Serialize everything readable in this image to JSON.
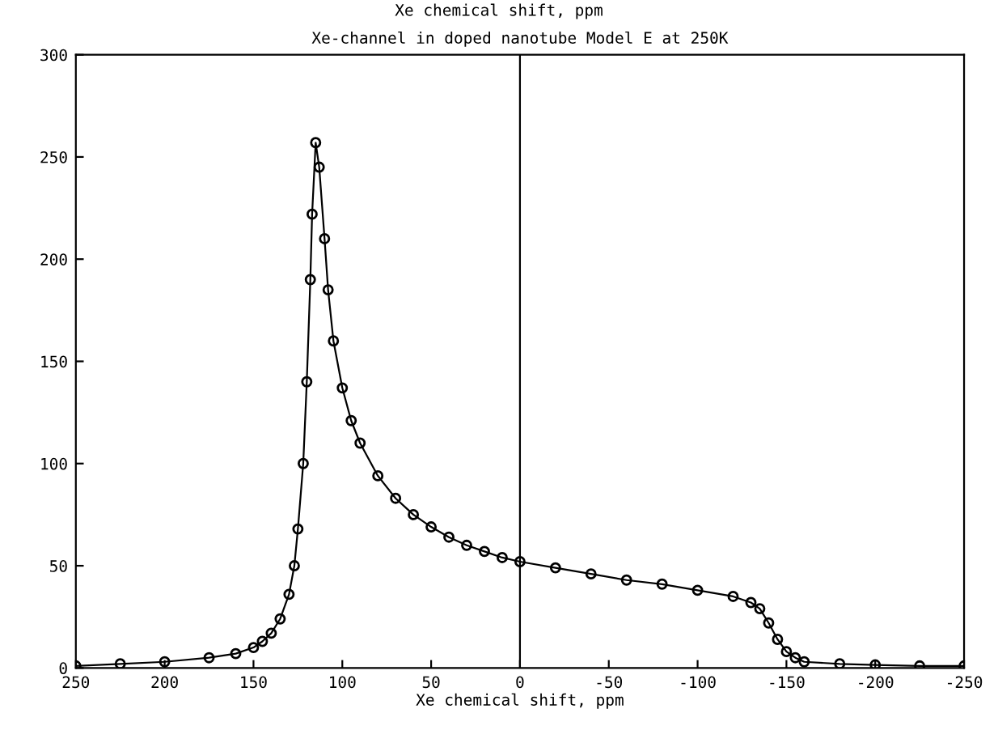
{
  "chart_data": {
    "type": "line",
    "title": "Xe-channel in doped nanotube Model E at 250K",
    "annotations": [
      "Xe chemical shift, ppm"
    ],
    "xlabel": "Xe chemical shift, ppm",
    "x": [
      250,
      225,
      200,
      175,
      160,
      150,
      145,
      140,
      135,
      130,
      127,
      125,
      122,
      120,
      118,
      117,
      115,
      113,
      110,
      108,
      105,
      100,
      95,
      90,
      80,
      70,
      60,
      50,
      40,
      30,
      20,
      10,
      0,
      -20,
      -40,
      -60,
      -80,
      -100,
      -120,
      -130,
      -135,
      -140,
      -145,
      -150,
      -155,
      -160,
      -180,
      -200,
      -225,
      -250
    ],
    "series": [
      {
        "color": "#000000",
        "values": [
          1,
          2,
          3,
          5,
          7,
          10,
          13,
          17,
          24,
          36,
          50,
          68,
          100,
          140,
          190,
          222,
          257,
          245,
          210,
          185,
          160,
          137,
          121,
          110,
          94,
          83,
          75,
          69,
          64,
          60,
          57,
          54,
          52,
          49,
          46,
          43,
          41,
          38,
          35,
          32,
          29,
          22,
          14,
          8,
          5,
          3,
          2,
          1.5,
          1,
          1
        ]
      }
    ],
    "xlim": [
      250,
      -250
    ],
    "xticks": [
      250,
      200,
      150,
      100,
      50,
      0,
      -50,
      -100,
      -150,
      -200,
      -250
    ],
    "ylim": [
      0,
      300
    ],
    "yticks": [
      0,
      50,
      100,
      150,
      200,
      250,
      300
    ],
    "ref_lines": [
      {
        "axis": "x",
        "value": 0,
        "color": "#000000"
      }
    ],
    "marker": "circle",
    "line_style": "solid",
    "grid": false,
    "legend": false
  }
}
